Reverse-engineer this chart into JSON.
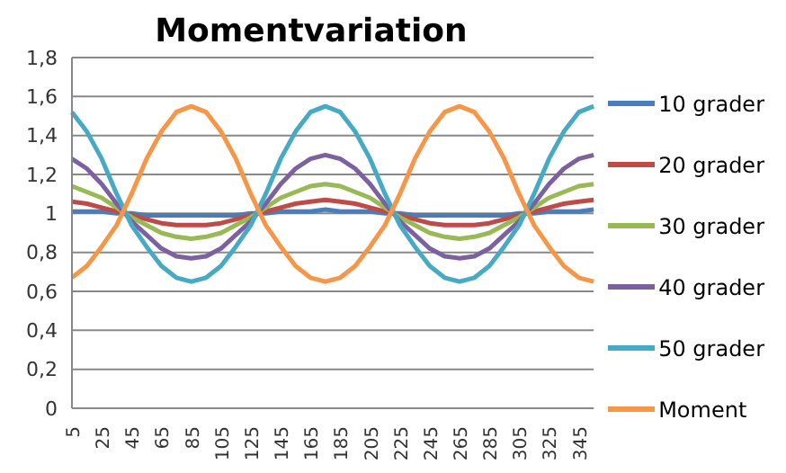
{
  "chart_data": {
    "type": "line",
    "title": "Momentvariation",
    "categories": [
      "5",
      null,
      "25",
      null,
      "45",
      null,
      "65",
      null,
      "85",
      null,
      "105",
      null,
      "125",
      null,
      "145",
      null,
      "165",
      null,
      "185",
      null,
      "205",
      null,
      "225",
      null,
      "245",
      null,
      "265",
      null,
      "285",
      null,
      "305",
      null,
      "325",
      null,
      "345",
      null
    ],
    "series": [
      {
        "name": "10 grader",
        "color": "#4a7ebb",
        "values": [
          1.01,
          1.01,
          1.01,
          1.0,
          1.0,
          0.99,
          0.99,
          0.99,
          0.99,
          0.99,
          0.99,
          0.99,
          1.0,
          1.0,
          1.01,
          1.01,
          1.01,
          1.02,
          1.01,
          1.01,
          1.01,
          1.0,
          1.0,
          0.99,
          0.99,
          0.99,
          0.99,
          0.99,
          0.99,
          0.99,
          1.0,
          1.0,
          1.01,
          1.01,
          1.01,
          1.02
        ]
      },
      {
        "name": "20 grader",
        "color": "#be4b48",
        "values": [
          1.06,
          1.05,
          1.03,
          1.01,
          0.99,
          0.97,
          0.95,
          0.94,
          0.94,
          0.94,
          0.95,
          0.97,
          0.99,
          1.01,
          1.03,
          1.05,
          1.06,
          1.07,
          1.06,
          1.05,
          1.03,
          1.01,
          0.99,
          0.97,
          0.95,
          0.94,
          0.94,
          0.94,
          0.95,
          0.97,
          0.99,
          1.01,
          1.03,
          1.05,
          1.06,
          1.07
        ]
      },
      {
        "name": "30 grader",
        "color": "#98b954",
        "values": [
          1.14,
          1.11,
          1.08,
          1.03,
          0.98,
          0.94,
          0.9,
          0.88,
          0.87,
          0.88,
          0.9,
          0.94,
          0.98,
          1.03,
          1.08,
          1.11,
          1.14,
          1.15,
          1.14,
          1.11,
          1.08,
          1.03,
          0.98,
          0.94,
          0.9,
          0.88,
          0.87,
          0.88,
          0.9,
          0.94,
          0.98,
          1.03,
          1.08,
          1.11,
          1.14,
          1.15
        ]
      },
      {
        "name": "40 grader",
        "color": "#7d60a0",
        "values": [
          1.28,
          1.23,
          1.15,
          1.05,
          0.96,
          0.89,
          0.82,
          0.78,
          0.77,
          0.78,
          0.82,
          0.89,
          0.96,
          1.05,
          1.15,
          1.23,
          1.28,
          1.3,
          1.28,
          1.23,
          1.15,
          1.05,
          0.96,
          0.89,
          0.82,
          0.78,
          0.77,
          0.78,
          0.82,
          0.89,
          0.96,
          1.05,
          1.15,
          1.23,
          1.28,
          1.3
        ]
      },
      {
        "name": "50 grader",
        "color": "#46aac5",
        "values": [
          1.52,
          1.42,
          1.28,
          1.1,
          0.94,
          0.83,
          0.73,
          0.67,
          0.65,
          0.67,
          0.73,
          0.83,
          0.94,
          1.1,
          1.28,
          1.42,
          1.52,
          1.55,
          1.52,
          1.42,
          1.28,
          1.1,
          0.94,
          0.83,
          0.73,
          0.67,
          0.65,
          0.67,
          0.73,
          0.83,
          0.94,
          1.1,
          1.28,
          1.42,
          1.52,
          1.55
        ]
      },
      {
        "name": "Moment",
        "color": "#f79646",
        "values": [
          0.67,
          0.73,
          0.83,
          0.94,
          1.1,
          1.28,
          1.42,
          1.52,
          1.55,
          1.52,
          1.42,
          1.28,
          1.1,
          0.94,
          0.83,
          0.73,
          0.67,
          0.65,
          0.67,
          0.73,
          0.83,
          0.94,
          1.1,
          1.28,
          1.42,
          1.52,
          1.55,
          1.52,
          1.42,
          1.28,
          1.1,
          0.94,
          0.83,
          0.73,
          0.67,
          0.65
        ]
      }
    ],
    "ylim": [
      0,
      1.8
    ],
    "yticks": [
      0,
      {
        "value": 0.2,
        "label": "0,2"
      },
      {
        "value": 0.4,
        "label": "0,4"
      },
      {
        "value": 0.6,
        "label": "0,6"
      },
      {
        "value": 0.8,
        "label": "0,8"
      },
      1,
      {
        "value": 1.2,
        "label": "1,2"
      },
      {
        "value": 1.4,
        "label": "1,4"
      },
      {
        "value": 1.6,
        "label": "1,6"
      },
      {
        "value": 1.8,
        "label": "1,8"
      }
    ],
    "grid": "y",
    "legend": "right",
    "marker": "none",
    "line_style": "solid"
  }
}
